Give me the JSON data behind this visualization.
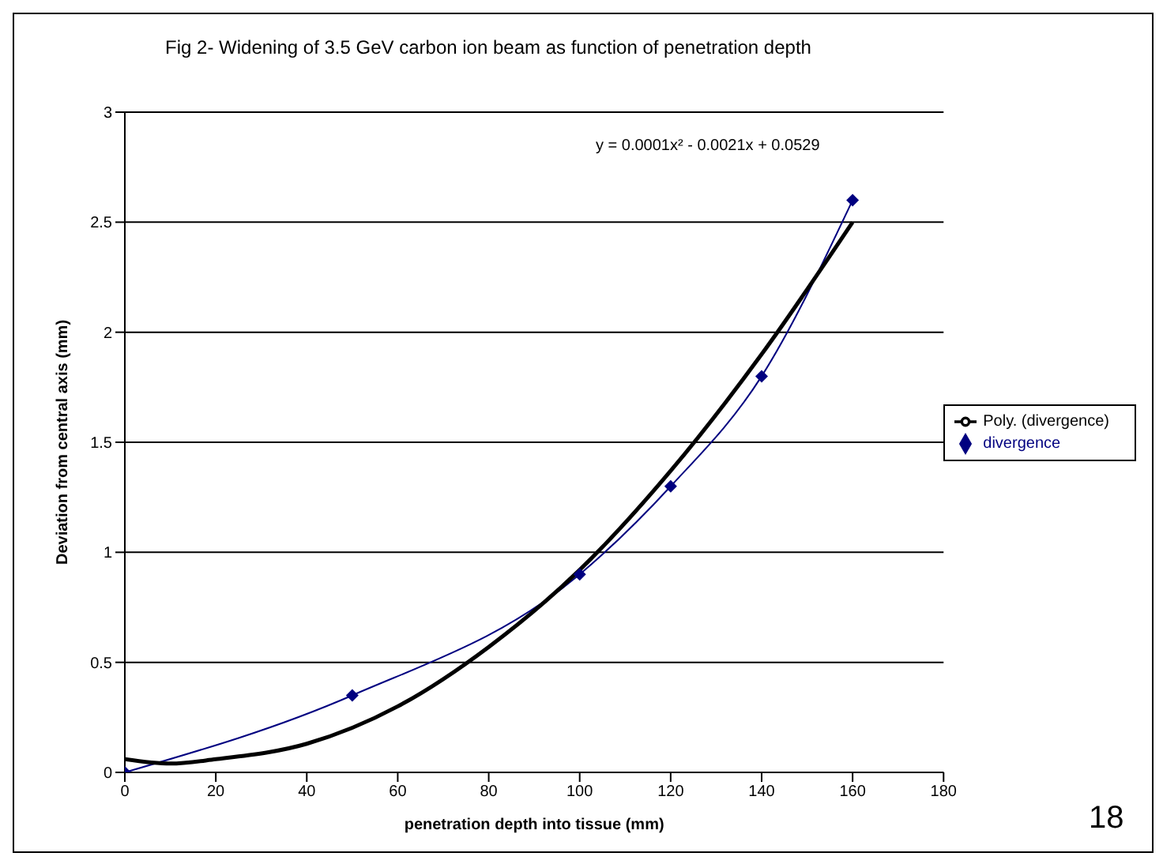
{
  "chart_data": {
    "type": "line",
    "title": "Fig 2- Widening of 3.5 GeV carbon ion beam as function of penetration depth",
    "xlabel": "penetration depth into tissue (mm)",
    "ylabel": "Deviation from central axis (mm)",
    "xlim": [
      0,
      180
    ],
    "xticks": [
      0,
      20,
      40,
      60,
      80,
      100,
      120,
      140,
      160,
      180
    ],
    "ylim": [
      0,
      3
    ],
    "yticks": [
      0,
      0.5,
      1,
      1.5,
      2,
      2.5,
      3
    ],
    "grid": "y",
    "legend": "right",
    "marker": "diamond",
    "series": [
      {
        "name": "divergence",
        "color": "#000080",
        "x": [
          0,
          50,
          100,
          120,
          140,
          160
        ],
        "values": [
          0,
          0.35,
          0.9,
          1.3,
          1.8,
          2.6
        ]
      },
      {
        "name": "Poly. (divergence)",
        "type": "line",
        "color": "#000000",
        "marker": "none",
        "x": [
          0,
          10,
          20,
          40,
          60,
          80,
          100,
          120,
          140,
          160
        ],
        "values": [
          0.06,
          0.04,
          0.06,
          0.13,
          0.3,
          0.57,
          0.92,
          1.37,
          1.9,
          2.5
        ]
      }
    ],
    "annotations": [
      "y = 0.0001x² - 0.0021x + 0.0529",
      "18"
    ]
  }
}
